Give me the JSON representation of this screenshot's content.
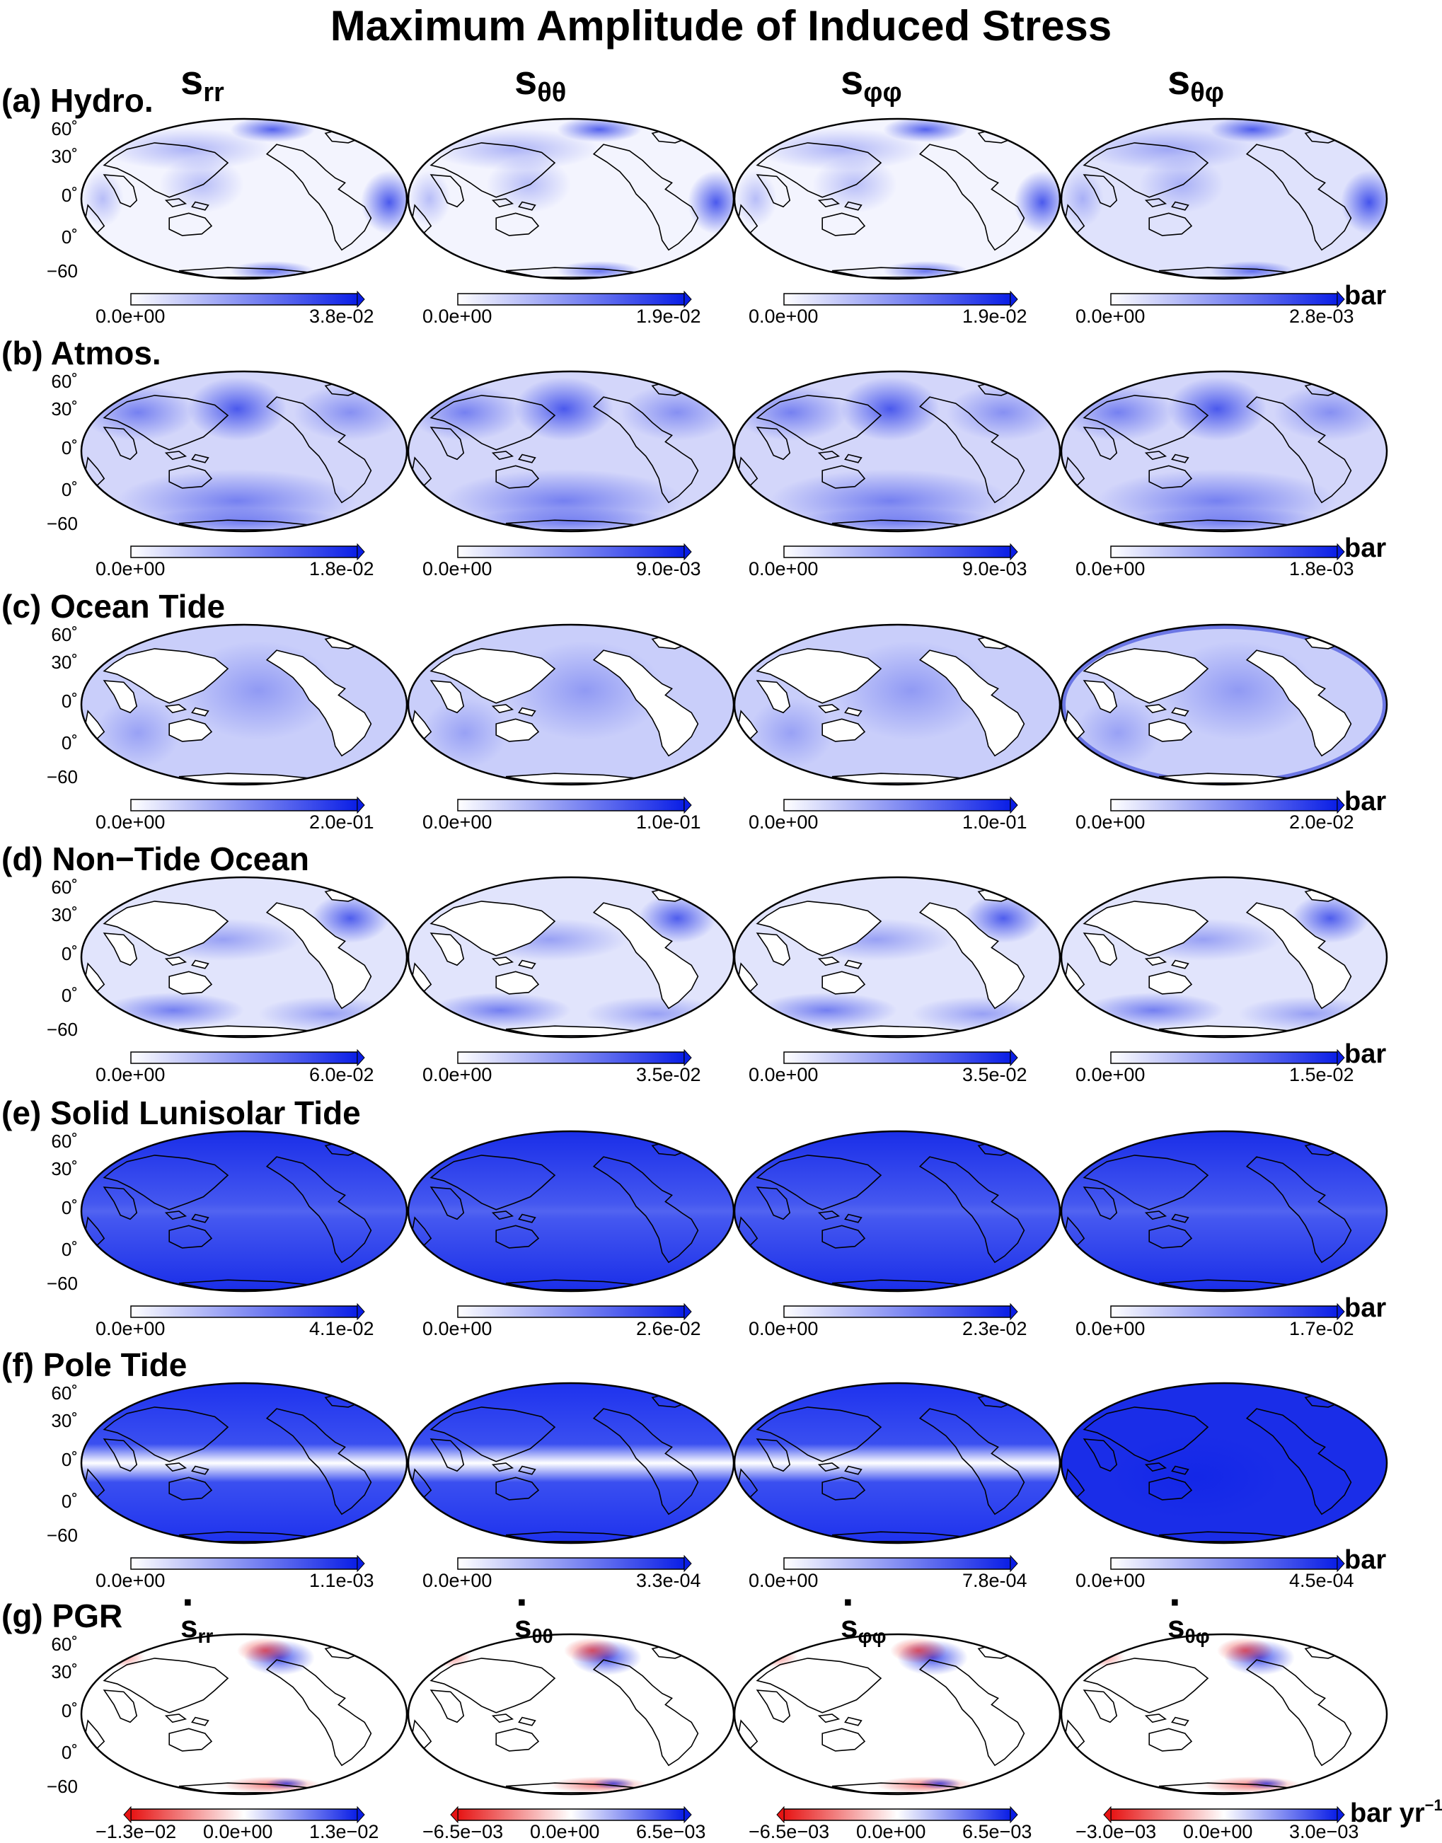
{
  "title": "Maximum Amplitude of Induced Stress",
  "column_headers": [
    {
      "base": "s",
      "sub": "rr"
    },
    {
      "base": "s",
      "sub": "θθ"
    },
    {
      "base": "s",
      "sub": "φφ"
    },
    {
      "base": "s",
      "sub": "θφ"
    }
  ],
  "latitude_labels": [
    "60˚",
    "30˚",
    "0˚",
    "0˚",
    "−60"
  ],
  "unit_bar": "bar",
  "unit_rate": {
    "base": "bar yr",
    "sup": "−1"
  },
  "colors": {
    "blue": "#0a1ee6",
    "red": "#e61414",
    "white": "#ffffff",
    "land_line": "#000000"
  },
  "chart_data": [
    {
      "type": "heatmap",
      "panel": "(a) Hydro.",
      "colorbar_min": [
        "0.0e+00",
        "0.0e+00",
        "0.0e+00",
        "0.0e+00"
      ],
      "colorbar_max": [
        "3.8e-02",
        "1.9e-02",
        "1.9e-02",
        "2.8e-03"
      ],
      "values_max": [
        0.038,
        0.019,
        0.019,
        0.0028
      ],
      "pattern": "hydro",
      "colormap": "white-blue"
    },
    {
      "type": "heatmap",
      "panel": "(b) Atmos.",
      "colorbar_min": [
        "0.0e+00",
        "0.0e+00",
        "0.0e+00",
        "0.0e+00"
      ],
      "colorbar_max": [
        "1.8e-02",
        "9.0e-03",
        "9.0e-03",
        "1.8e-03"
      ],
      "values_max": [
        0.018,
        0.009,
        0.009,
        0.0018
      ],
      "pattern": "atmos",
      "colormap": "white-blue"
    },
    {
      "type": "heatmap",
      "panel": "(c) Ocean Tide",
      "colorbar_min": [
        "0.0e+00",
        "0.0e+00",
        "0.0e+00",
        "0.0e+00"
      ],
      "colorbar_max": [
        "2.0e-01",
        "1.0e-01",
        "1.0e-01",
        "2.0e-02"
      ],
      "values_max": [
        0.2,
        0.1,
        0.1,
        0.02
      ],
      "pattern": "ocean",
      "colormap": "white-blue"
    },
    {
      "type": "heatmap",
      "panel": "(d) Non−Tide Ocean",
      "colorbar_min": [
        "0.0e+00",
        "0.0e+00",
        "0.0e+00",
        "0.0e+00"
      ],
      "colorbar_max": [
        "6.0e-02",
        "3.5e-02",
        "3.5e-02",
        "1.5e-02"
      ],
      "values_max": [
        0.06,
        0.035,
        0.035,
        0.015
      ],
      "pattern": "nontide",
      "colormap": "white-blue"
    },
    {
      "type": "heatmap",
      "panel": "(e) Solid Lunisolar Tide",
      "colorbar_min": [
        "0.0e+00",
        "0.0e+00",
        "0.0e+00",
        "0.0e+00"
      ],
      "colorbar_max": [
        "4.1e-02",
        "2.6e-02",
        "2.3e-02",
        "1.7e-02"
      ],
      "values_max": [
        0.041,
        0.026,
        0.023,
        0.017
      ],
      "pattern": "solid",
      "colormap": "white-blue"
    },
    {
      "type": "heatmap",
      "panel": "(f) Pole Tide",
      "colorbar_min": [
        "0.0e+00",
        "0.0e+00",
        "0.0e+00",
        "0.0e+00"
      ],
      "colorbar_max": [
        "1.1e-03",
        "3.3e-04",
        "7.8e-04",
        "4.5e-04"
      ],
      "values_max": [
        0.0011,
        0.00033,
        0.00078,
        0.00045
      ],
      "pattern": "pole",
      "colormap": "white-blue"
    },
    {
      "type": "heatmap",
      "panel": "(g) PGR",
      "colorbar_min": [
        "−1.3e−02",
        "−6.5e−03",
        "−6.5e−03",
        "−3.0e−03"
      ],
      "colorbar_mid": [
        "0.0e+00",
        "0.0e+00",
        "0.0e+00",
        "0.0e+00"
      ],
      "colorbar_max": [
        "1.3e−02",
        "6.5e−03",
        "6.5e−03",
        "3.0e−03"
      ],
      "values_range": [
        [
          -0.013,
          0.013
        ],
        [
          -0.0065,
          0.0065
        ],
        [
          -0.0065,
          0.0065
        ],
        [
          -0.003,
          0.003
        ]
      ],
      "pattern": "pgr",
      "colormap": "red-white-blue"
    }
  ]
}
